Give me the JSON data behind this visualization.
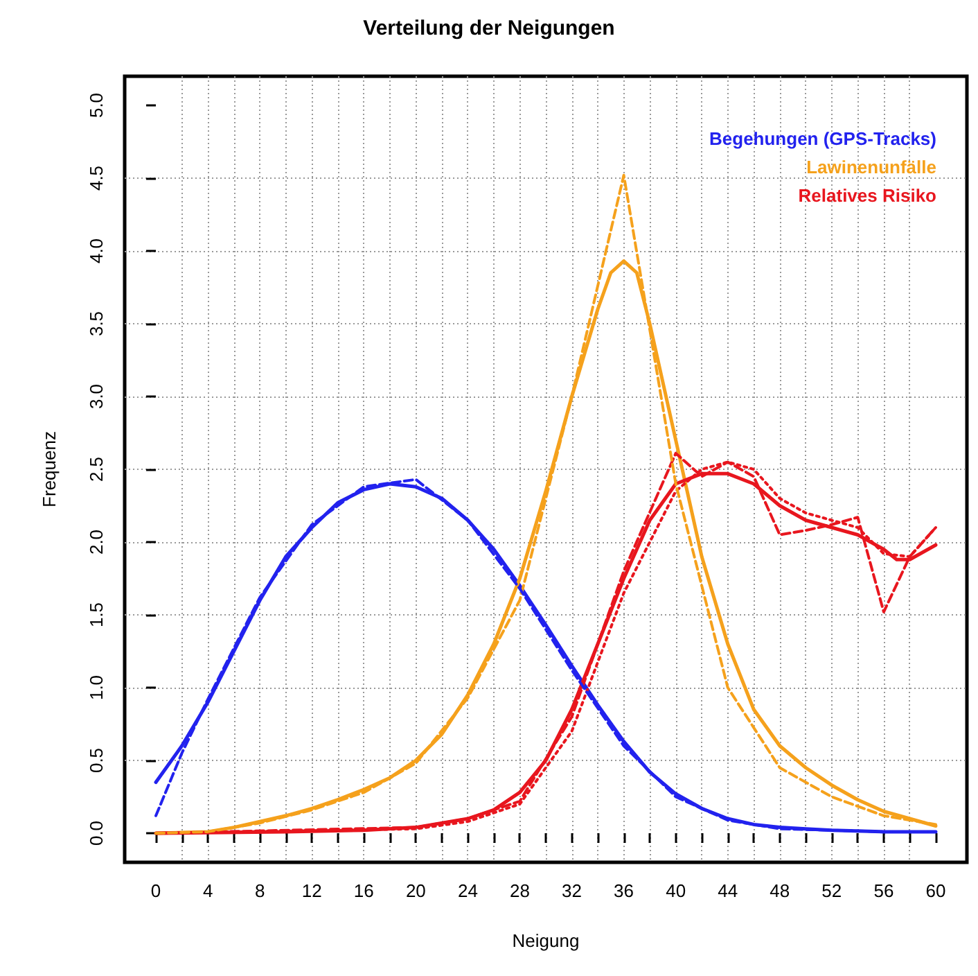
{
  "chart_data": {
    "type": "line",
    "title": "Verteilung der Neigungen",
    "xlabel": "Neigung",
    "ylabel": "Frequenz",
    "xlim": [
      -2.4,
      62.4
    ],
    "ylim": [
      -0.2,
      5.2
    ],
    "xticks": [
      0,
      {
        "value": 2,
        "label": null
      },
      4,
      {
        "value": 6,
        "label": null
      },
      8,
      {
        "value": 10,
        "label": null
      },
      12,
      {
        "value": 14,
        "label": null
      },
      16,
      {
        "value": 18,
        "label": null
      },
      20,
      {
        "value": 22,
        "label": null
      },
      24,
      {
        "value": 26,
        "label": null
      },
      28,
      {
        "value": 30,
        "label": null
      },
      32,
      {
        "value": 34,
        "label": null
      },
      36,
      {
        "value": 38,
        "label": null
      },
      40,
      {
        "value": 42,
        "label": null
      },
      44,
      {
        "value": 46,
        "label": null
      },
      48,
      {
        "value": 50,
        "label": null
      },
      52,
      {
        "value": 54,
        "label": null
      },
      56,
      {
        "value": 58,
        "label": null
      },
      60
    ],
    "yticks": [
      {
        "value": 0,
        "label": "0.0"
      },
      0.5,
      {
        "value": 1,
        "label": "1.0"
      },
      1.5,
      {
        "value": 2,
        "label": "2.0"
      },
      2.5,
      {
        "value": 3,
        "label": "3.0"
      },
      3.5,
      {
        "value": 4,
        "label": "4.0"
      },
      4.5,
      {
        "value": 5,
        "label": "5.0"
      }
    ],
    "grid": true,
    "legend": "top right",
    "marker": "none",
    "series": [
      {
        "name": "Begehungen (GPS-Tracks)",
        "color": "#2222ee",
        "line_style": "solid",
        "x": [
          0,
          2,
          4,
          6,
          8,
          10,
          12,
          14,
          16,
          18,
          20,
          22,
          24,
          26,
          28,
          30,
          32,
          34,
          36,
          38,
          40,
          42,
          44,
          46,
          48,
          50,
          52,
          56,
          60
        ],
        "values": [
          0.35,
          0.6,
          0.9,
          1.25,
          1.6,
          1.9,
          2.1,
          2.27,
          2.36,
          2.4,
          2.38,
          2.3,
          2.15,
          1.95,
          1.7,
          1.43,
          1.15,
          0.88,
          0.63,
          0.42,
          0.27,
          0.17,
          0.1,
          0.06,
          0.04,
          0.03,
          0.02,
          0.01,
          0.01
        ]
      },
      {
        "color": "#2222ee",
        "line_style": "dashed",
        "x": [
          0,
          2,
          4,
          8,
          12,
          16,
          20,
          24,
          28,
          32,
          36,
          40,
          44,
          48,
          52,
          56,
          60
        ],
        "values": [
          0.12,
          0.55,
          0.92,
          1.62,
          2.12,
          2.38,
          2.43,
          2.15,
          1.68,
          1.12,
          0.6,
          0.25,
          0.09,
          0.03,
          0.02,
          0.01,
          0.01
        ]
      },
      {
        "name": "Lawinenunfälle",
        "color": "#f5a11c",
        "line_style": "solid",
        "x": [
          0,
          4,
          6,
          8,
          10,
          12,
          14,
          16,
          18,
          20,
          22,
          24,
          26,
          28,
          30,
          32,
          34,
          35,
          36,
          37,
          38,
          40,
          42,
          44,
          46,
          48,
          50,
          52,
          54,
          56,
          58,
          60
        ],
        "values": [
          0,
          0.01,
          0.04,
          0.08,
          0.12,
          0.17,
          0.23,
          0.3,
          0.38,
          0.5,
          0.68,
          0.95,
          1.3,
          1.75,
          2.35,
          3.0,
          3.6,
          3.85,
          3.93,
          3.85,
          3.5,
          2.7,
          1.9,
          1.3,
          0.85,
          0.6,
          0.45,
          0.33,
          0.23,
          0.15,
          0.1,
          0.05
        ]
      },
      {
        "color": "#f5a11c",
        "line_style": "dashed",
        "x": [
          0,
          4,
          8,
          12,
          16,
          20,
          24,
          28,
          32,
          36,
          40,
          44,
          48,
          52,
          56,
          60
        ],
        "values": [
          0,
          0.01,
          0.07,
          0.16,
          0.28,
          0.48,
          0.93,
          1.6,
          3.0,
          4.52,
          2.4,
          1.0,
          0.45,
          0.25,
          0.12,
          0.06
        ]
      },
      {
        "name": "Relatives Risiko",
        "color": "#e8161e",
        "line_style": "solid",
        "x": [
          0,
          10,
          16,
          20,
          24,
          26,
          28,
          30,
          32,
          34,
          36,
          38,
          40,
          42,
          44,
          46,
          48,
          50,
          52,
          54,
          56,
          57,
          58,
          60
        ],
        "values": [
          0,
          0.01,
          0.02,
          0.04,
          0.1,
          0.16,
          0.28,
          0.5,
          0.85,
          1.3,
          1.75,
          2.15,
          2.4,
          2.47,
          2.47,
          2.4,
          2.25,
          2.15,
          2.1,
          2.05,
          1.95,
          1.88,
          1.88,
          1.98
        ]
      },
      {
        "color": "#e8161e",
        "line_style": "dashed",
        "x": [
          0,
          20,
          24,
          28,
          32,
          36,
          40,
          42,
          44,
          46,
          48,
          50,
          52,
          54,
          56,
          58,
          60
        ],
        "values": [
          0,
          0.04,
          0.1,
          0.22,
          0.8,
          1.8,
          2.61,
          2.45,
          2.55,
          2.45,
          2.05,
          2.08,
          2.12,
          2.17,
          1.52,
          1.9,
          2.1
        ]
      },
      {
        "color": "#e8161e",
        "line_style": "dotted",
        "x": [
          0,
          20,
          24,
          28,
          32,
          36,
          40,
          42,
          44,
          46,
          48,
          50,
          52,
          54,
          56,
          58,
          60
        ],
        "values": [
          0,
          0.03,
          0.08,
          0.2,
          0.7,
          1.65,
          2.35,
          2.5,
          2.55,
          2.5,
          2.3,
          2.2,
          2.15,
          2.1,
          1.92,
          1.9,
          2.1
        ]
      }
    ]
  }
}
